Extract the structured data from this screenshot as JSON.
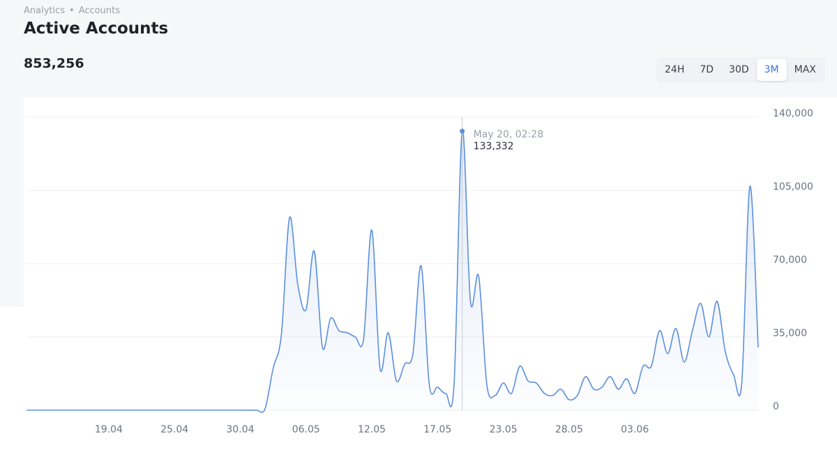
{
  "breadcrumb": [
    "Analytics",
    "Accounts"
  ],
  "title": "Active Accounts",
  "total": "853,256",
  "ranges": [
    {
      "label": "24H"
    },
    {
      "label": "7D"
    },
    {
      "label": "30D"
    },
    {
      "label": "3M",
      "active": true
    },
    {
      "label": "MAX"
    }
  ],
  "chart_data": {
    "type": "line",
    "categories": [
      null,
      null,
      null,
      null,
      null,
      null,
      null,
      null,
      null,
      null,
      "19.04",
      null,
      null,
      null,
      null,
      null,
      null,
      null,
      "25.04",
      null,
      null,
      null,
      null,
      null,
      null,
      null,
      "30.04",
      null,
      null,
      null,
      null,
      null,
      null,
      null,
      "06.05",
      null,
      null,
      null,
      null,
      null,
      null,
      null,
      "12.05",
      null,
      null,
      null,
      null,
      null,
      null,
      null,
      "17.05",
      null,
      null,
      null,
      null,
      null,
      null,
      null,
      "23.05",
      null,
      null,
      null,
      null,
      null,
      null,
      null,
      "28.05",
      null,
      null,
      null,
      null,
      null,
      null,
      null,
      "03.06",
      null,
      null,
      null,
      null,
      null,
      null,
      null,
      null,
      null,
      null,
      null,
      null,
      null,
      null,
      null
    ],
    "series": [
      {
        "name": "Active Accounts",
        "color": "#5b8fdd",
        "values": [
          0,
          0,
          0,
          0,
          0,
          0,
          0,
          0,
          0,
          0,
          0,
          0,
          0,
          0,
          0,
          0,
          0,
          0,
          0,
          0,
          0,
          0,
          0,
          0,
          0,
          0,
          0,
          0,
          0,
          500,
          20000,
          36000,
          92000,
          60000,
          48000,
          76000,
          30000,
          44000,
          38000,
          37000,
          35000,
          34000,
          86000,
          20000,
          37000,
          14000,
          22000,
          27000,
          69000,
          12000,
          11000,
          8000,
          12000,
          133332,
          52000,
          64000,
          12000,
          7000,
          13000,
          8000,
          21000,
          14000,
          13000,
          8000,
          7000,
          10000,
          5000,
          7000,
          16000,
          10000,
          11000,
          16000,
          10000,
          15000,
          8000,
          21000,
          21000,
          38000,
          27000,
          39000,
          23000,
          38000,
          51000,
          35000,
          52000,
          28000,
          17000,
          13000,
          107000,
          30000
        ]
      }
    ],
    "ylim": [
      0,
      140000
    ],
    "yticks": [
      0,
      {
        "value": 35000,
        "label": "35,000"
      },
      {
        "value": 70000,
        "label": "70,000"
      },
      {
        "value": 105000,
        "label": "105,000"
      },
      {
        "value": 140000,
        "label": "140,000"
      }
    ],
    "grid": true,
    "tooltip": {
      "title": "May 20, 02:28",
      "text": "133,332"
    }
  }
}
